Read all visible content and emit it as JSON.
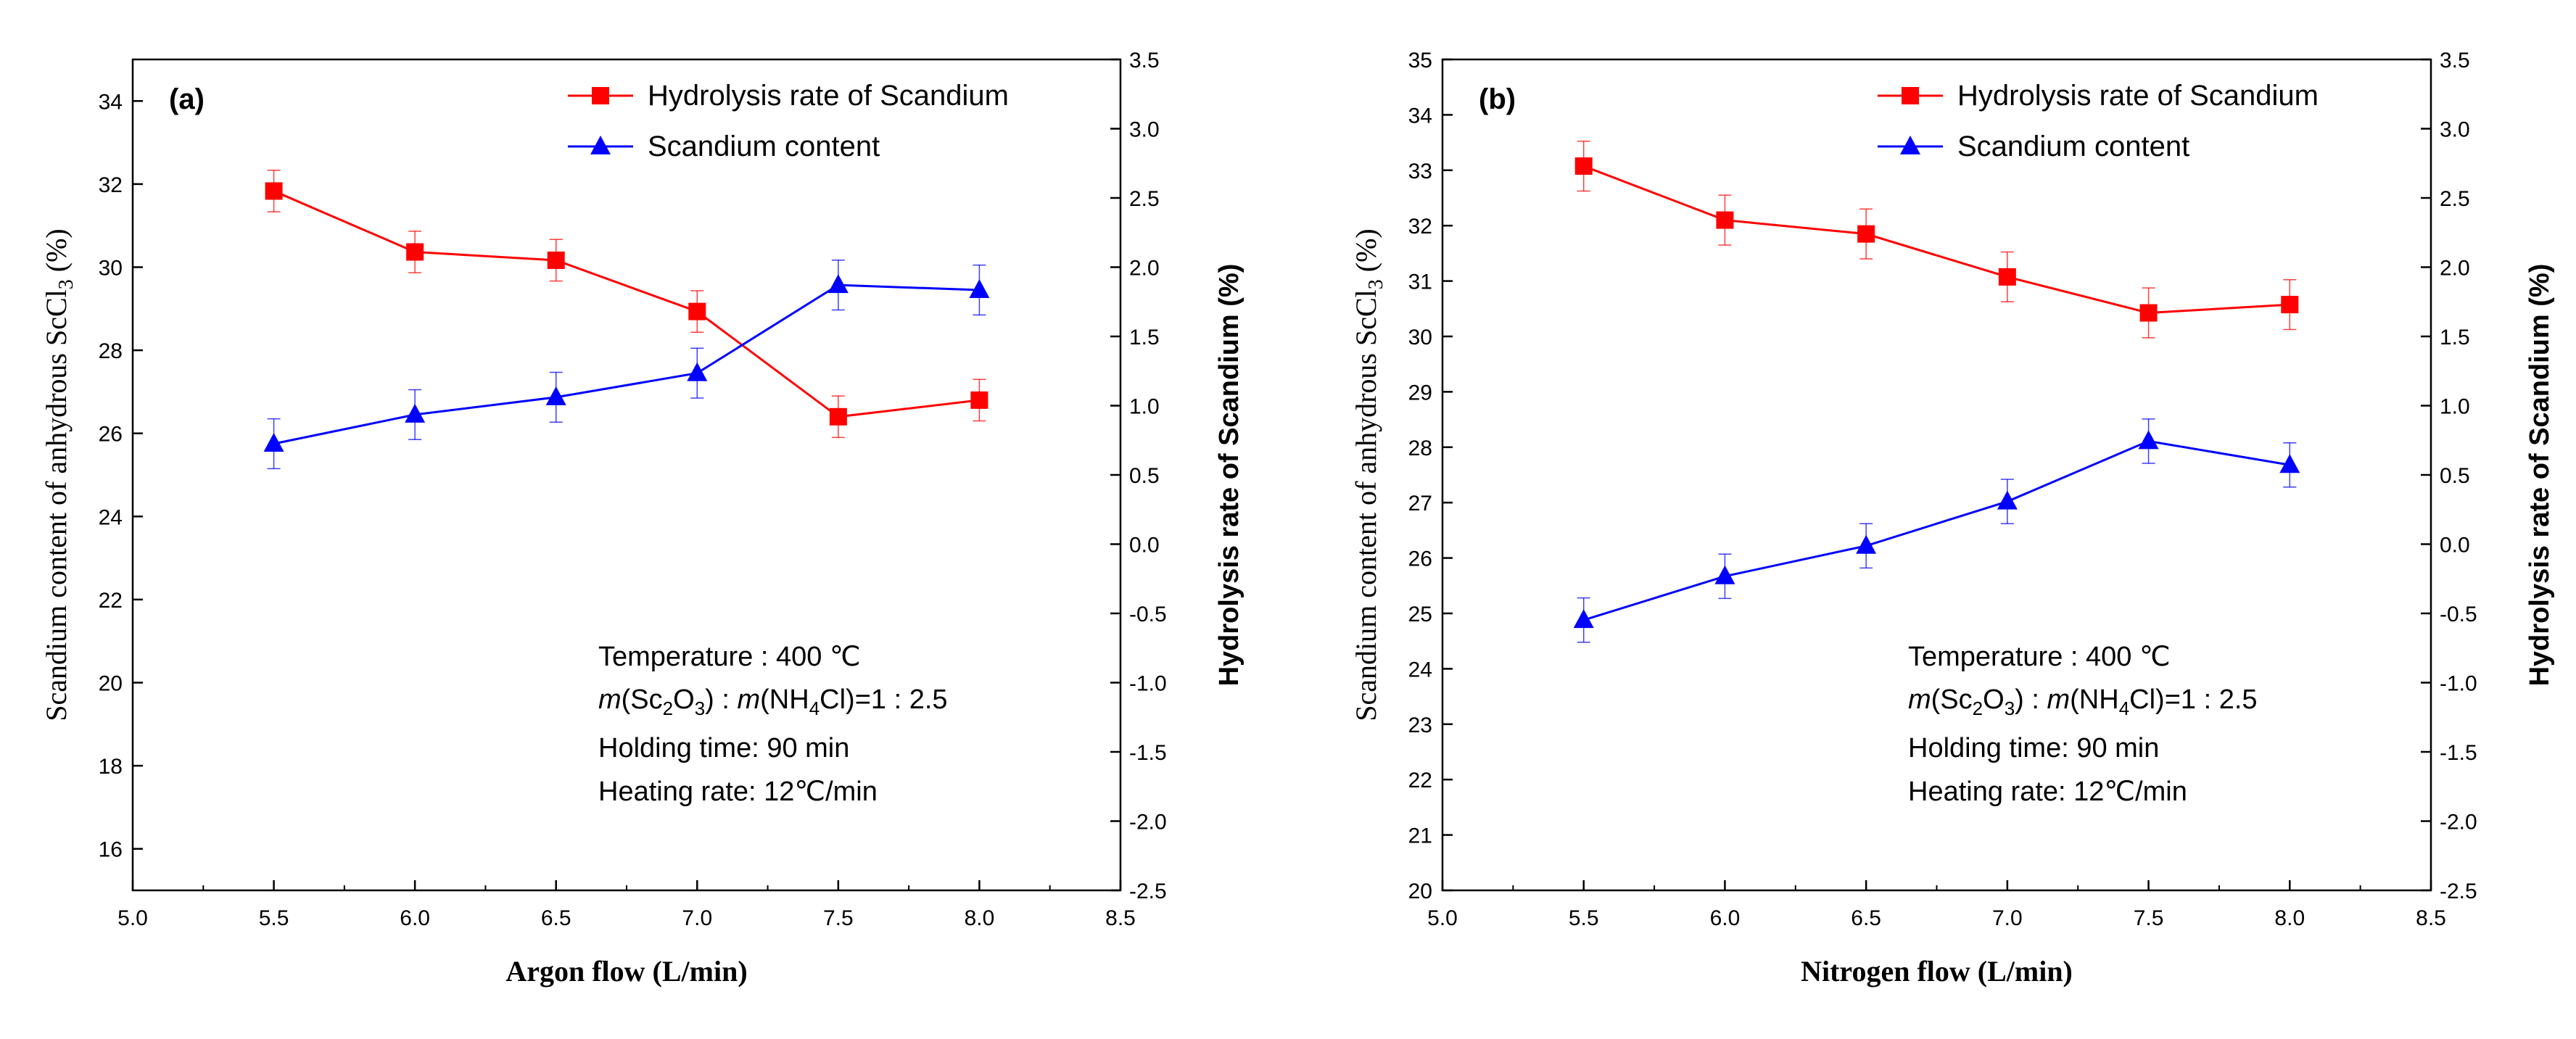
{
  "colors": {
    "rate": "#ff0000",
    "content": "#0000ff",
    "axis": "#000000"
  },
  "chart_data": [
    {
      "type": "line",
      "panel_label": "(a)",
      "xlabel": "Argon flow (L/min)",
      "ylabel_left_main": "Scandium content of anhydrous ScCl",
      "ylabel_left_sub": "3",
      "ylabel_left_tail": " (%)",
      "ylabel_right": "Hydrolysis rate of Scandium (%)",
      "xlim": [
        5.0,
        8.5
      ],
      "ylim_left": [
        15,
        35
      ],
      "ylim_right": [
        -2.5,
        3.5
      ],
      "x_ticks": [
        "5.0",
        "5.5",
        "6.0",
        "6.5",
        "7.0",
        "7.5",
        "8.0",
        "8.5"
      ],
      "y_left_ticks": [
        "16",
        "18",
        "20",
        "22",
        "24",
        "26",
        "28",
        "30",
        "32",
        "34"
      ],
      "y_right_ticks": [
        "-2.5",
        "-2.0",
        "-1.5",
        "-1.0",
        "-0.5",
        "0.0",
        "0.5",
        "1.0",
        "1.5",
        "2.0",
        "2.5",
        "3.0",
        "3.5"
      ],
      "x": [
        5.5,
        6.0,
        6.5,
        7.0,
        7.5,
        8.0
      ],
      "series": [
        {
          "name": "Hydrolysis rate of Scandium",
          "axis": "right",
          "marker": "square",
          "color": "#ff0000",
          "values": [
            2.55,
            2.11,
            2.05,
            1.68,
            0.92,
            1.04
          ],
          "error": [
            0.15,
            0.15,
            0.15,
            0.15,
            0.15,
            0.15
          ]
        },
        {
          "name": "Scandium content",
          "axis": "left",
          "marker": "triangle",
          "color": "#0000ff",
          "values": [
            25.75,
            26.45,
            26.87,
            27.45,
            29.57,
            29.45
          ],
          "error": [
            0.6,
            0.6,
            0.6,
            0.6,
            0.6,
            0.6
          ]
        }
      ],
      "annotations": [
        "Temperature : 400 ℃",
        "m(Sc2O3) : m(NH4Cl)=1 : 2.5",
        "Holding time: 90 min",
        "Heating rate: 12℃/min"
      ]
    },
    {
      "type": "line",
      "panel_label": "(b)",
      "xlabel": "Nitrogen flow (L/min)",
      "ylabel_left_main": "Scandium content of anhydrous ScCl",
      "ylabel_left_sub": "3",
      "ylabel_left_tail": " (%)",
      "ylabel_right": "Hydrolysis rate of Scandium (%)",
      "xlim": [
        5.0,
        8.5
      ],
      "ylim_left": [
        20,
        35
      ],
      "ylim_right": [
        -2.5,
        3.5
      ],
      "x_ticks": [
        "5.0",
        "5.5",
        "6.0",
        "6.5",
        "7.0",
        "7.5",
        "8.0",
        "8.5"
      ],
      "y_left_ticks": [
        "20",
        "21",
        "22",
        "23",
        "24",
        "25",
        "26",
        "27",
        "28",
        "29",
        "30",
        "31",
        "32",
        "33",
        "34",
        "35"
      ],
      "y_right_ticks": [
        "-2.5",
        "-2.0",
        "-1.5",
        "-1.0",
        "-0.5",
        "0.0",
        "0.5",
        "1.0",
        "1.5",
        "2.0",
        "2.5",
        "3.0",
        "3.5"
      ],
      "x": [
        5.5,
        6.0,
        6.5,
        7.0,
        7.5,
        8.0
      ],
      "series": [
        {
          "name": "Hydrolysis rate of Scandium",
          "axis": "right",
          "marker": "square",
          "color": "#ff0000",
          "values": [
            2.73,
            2.34,
            2.24,
            1.93,
            1.67,
            1.73
          ],
          "error": [
            0.18,
            0.18,
            0.18,
            0.18,
            0.18,
            0.18
          ]
        },
        {
          "name": "Scandium content",
          "axis": "left",
          "marker": "triangle",
          "color": "#0000ff",
          "values": [
            24.88,
            25.67,
            26.22,
            27.02,
            28.11,
            27.68
          ],
          "error": [
            0.4,
            0.4,
            0.4,
            0.4,
            0.4,
            0.4
          ]
        }
      ],
      "annotations": [
        "Temperature : 400 ℃",
        "m(Sc2O3) : m(NH4Cl)=1 : 2.5",
        "Holding time: 90 min",
        "Heating rate: 12℃/min"
      ]
    }
  ]
}
